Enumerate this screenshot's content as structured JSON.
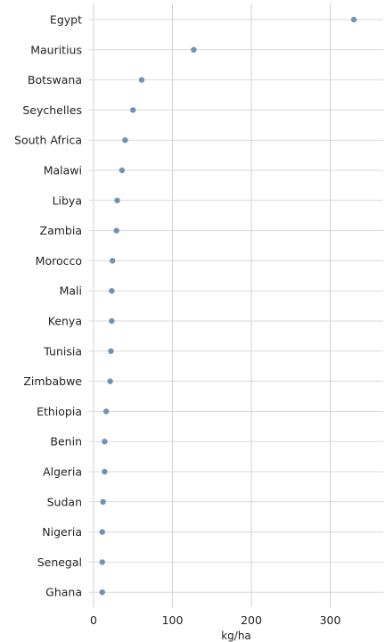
{
  "chart_data": {
    "type": "scatter",
    "orientation": "horizontal",
    "categories": [
      "Egypt",
      "Mauritius",
      "Botswana",
      "Seychelles",
      "South Africa",
      "Malawi",
      "Libya",
      "Zambia",
      "Morocco",
      "Mali",
      "Kenya",
      "Tunisia",
      "Zimbabwe",
      "Ethiopia",
      "Benin",
      "Algeria",
      "Sudan",
      "Nigeria",
      "Senegal",
      "Ghana"
    ],
    "values": [
      330,
      127,
      61,
      50,
      40,
      36,
      30,
      29,
      24,
      23,
      23,
      22,
      21,
      16,
      14,
      14,
      12,
      11,
      11,
      11
    ],
    "title": "",
    "xlabel": "kg/ha",
    "ylabel": "",
    "xlim": [
      0,
      350
    ],
    "xticks": [
      0,
      100,
      200,
      300
    ],
    "grid": true,
    "point_color": "#6f93b6"
  }
}
